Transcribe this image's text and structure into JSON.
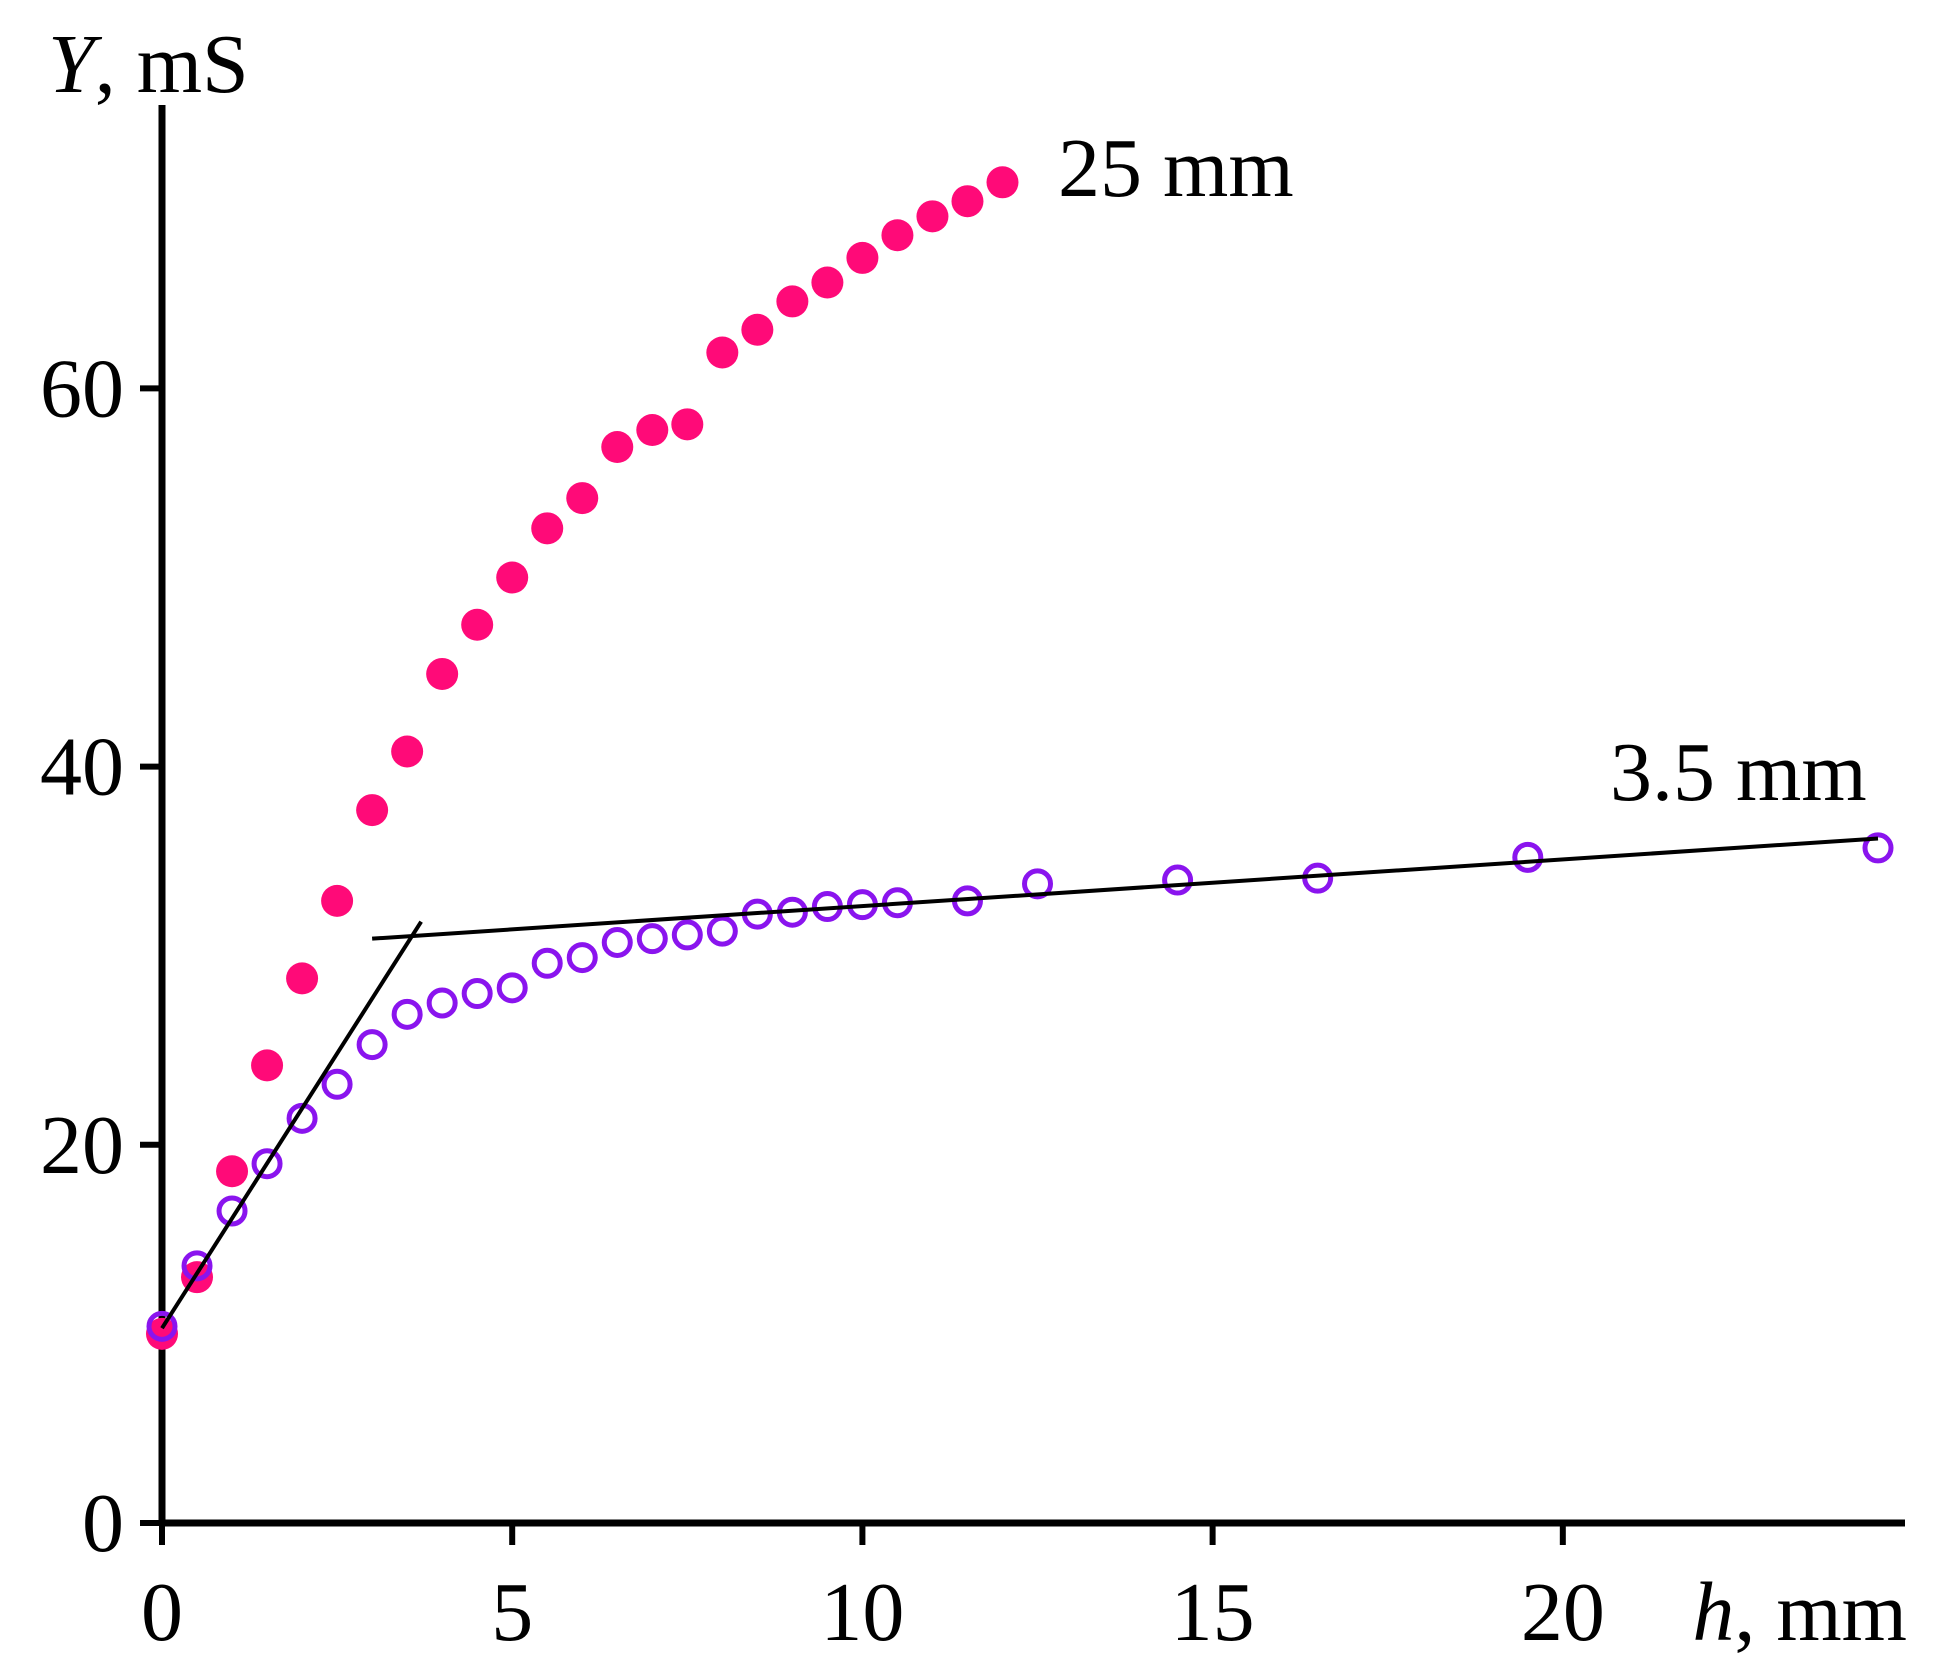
{
  "chart_data": {
    "type": "scatter",
    "title": "",
    "xlabel": {
      "var": "h",
      "unit": ", mm"
    },
    "ylabel": {
      "var": "Y",
      "unit": ", mS"
    },
    "xlim": [
      0,
      24.5
    ],
    "ylim": [
      0,
      75
    ],
    "xticks": [
      0,
      5,
      10,
      15,
      20
    ],
    "xtick_labels": [
      "0",
      "5",
      "10",
      "15",
      "20"
    ],
    "yticks": [
      0,
      20,
      40,
      60
    ],
    "ytick_labels": [
      "0",
      "20",
      "40",
      "60"
    ],
    "grid": false,
    "series": [
      {
        "name": "25 mm",
        "marker": "filled-circle",
        "color": "#ff0a78",
        "x": [
          0,
          0.5,
          1,
          1.5,
          2,
          2.5,
          3,
          3.5,
          4,
          4.5,
          5,
          5.5,
          6,
          6.5,
          7,
          7.5,
          8,
          8.5,
          9,
          9.5,
          10,
          10.5,
          11,
          11.5,
          12
        ],
        "y": [
          10.0,
          13.0,
          18.6,
          24.2,
          28.8,
          32.9,
          37.7,
          40.8,
          44.9,
          47.5,
          50.0,
          52.6,
          54.2,
          56.9,
          57.8,
          58.1,
          61.9,
          63.1,
          64.6,
          65.6,
          66.9,
          68.1,
          69.1,
          69.9,
          70.9
        ]
      },
      {
        "name": "3.5 mm",
        "marker": "open-circle",
        "color": "#8a14ee",
        "x": [
          0,
          0.5,
          1,
          1.5,
          2,
          2.5,
          3,
          3.5,
          4,
          4.5,
          5,
          5.5,
          6,
          6.5,
          7,
          7.5,
          8,
          8.5,
          9,
          9.5,
          10,
          10.5,
          11.5,
          12.5,
          14.5,
          16.5,
          19.5,
          24.5
        ],
        "y": [
          10.4,
          13.6,
          16.5,
          19.0,
          21.4,
          23.2,
          25.3,
          26.9,
          27.5,
          28.0,
          28.3,
          29.6,
          29.9,
          30.7,
          30.9,
          31.1,
          31.3,
          32.2,
          32.3,
          32.6,
          32.7,
          32.8,
          32.9,
          33.8,
          34.0,
          34.1,
          35.2,
          35.7
        ]
      }
    ],
    "fit_lines": [
      {
        "name": "initial-slope-fit",
        "x": [
          0,
          3.7
        ],
        "y": [
          10.3,
          31.8
        ]
      },
      {
        "name": "plateau-fit",
        "x": [
          3,
          24.5
        ],
        "y": [
          30.9,
          36.2
        ]
      }
    ]
  }
}
